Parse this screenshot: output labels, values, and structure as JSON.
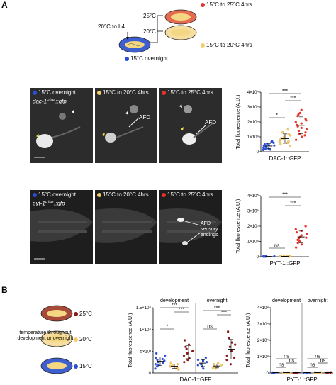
{
  "panel_a": {
    "letter": "A",
    "schematic": {
      "start_label": "20°C to L4",
      "bottom_plate_label": "15°C overnight",
      "branch_top_temp": "25°C",
      "branch_mid_temp": "20°C",
      "legend_top": "15°C to 25°C 4hrs",
      "legend_bottom": "15°C to 20°C 4hrs"
    },
    "row1": {
      "labels": [
        "15°C overnight",
        "15°C to 20°C 4hrs",
        "15°C to 25°C 4hrs"
      ],
      "gene": "dac-1",
      "gene_sup": "crispr",
      "gene_suffix": "::gfp",
      "afd_label_1": "AFD",
      "afd_label_2": "AFD"
    },
    "row2": {
      "labels": [
        "15°C overnight",
        "15°C to 20°C 4hrs",
        "15°C to 25°C 4hrs"
      ],
      "gene": "pyt-1",
      "gene_sup": "crispr",
      "gene_suffix": "::gfp",
      "annotation": [
        "AFD",
        "sensory",
        "endings"
      ]
    }
  },
  "panel_b": {
    "letter": "B",
    "schematic_label": [
      "temperature throughout",
      "development or overnight"
    ],
    "temps": [
      "25°C",
      "20°C",
      "15°C"
    ]
  },
  "colors": {
    "blue": "#2a4fd6",
    "yellow": "#f5cc6b",
    "red": "#e8332a",
    "dark_red": "#8b1a1a",
    "plate_red": "#e56a4f",
    "plate_yellow": "#f5dea0",
    "plate_blue": "#3d5fd0"
  },
  "chart_data": [
    {
      "type": "scatter",
      "ylabel": "Total fluorescence (A.U.)",
      "xlabel": "DAC-1::GFP",
      "y_ticks": [
        "0",
        "1×10⁴",
        "2×10⁴",
        "3×10⁴",
        "4×10⁴"
      ],
      "ylim": [
        0,
        40000
      ],
      "series": [
        {
          "color": "#2a4fd6",
          "values": [
            1200,
            1800,
            2500,
            3000,
            3500,
            4000,
            4200,
            5000,
            5500,
            6000,
            6500,
            7000,
            2000,
            3200,
            4500,
            1500
          ]
        },
        {
          "color": "#f5cc6b",
          "values": [
            4000,
            6000,
            8000,
            10000,
            12000,
            9000,
            7000,
            5000,
            11000,
            13000,
            15000,
            6500,
            8500
          ]
        },
        {
          "color": "#e8332a",
          "values": [
            8000,
            10000,
            12000,
            14000,
            16000,
            18000,
            20000,
            22000,
            24000,
            26000,
            15000,
            17000,
            19000,
            21000,
            13000,
            25000,
            28000,
            11000
          ]
        }
      ],
      "significance": [
        "***",
        "*",
        "***"
      ]
    },
    {
      "type": "scatter",
      "ylabel": "Total fluorescence (A.U.)",
      "xlabel": "PYT-1::GFP",
      "y_ticks": [
        "0",
        "1×10⁵",
        "2×10⁵",
        "3×10⁵",
        "4×10⁵"
      ],
      "ylim": [
        0,
        400000
      ],
      "series": [
        {
          "color": "#2a4fd6",
          "values": [
            1000,
            1500,
            2000,
            2500,
            1200,
            1800,
            2200,
            900
          ]
        },
        {
          "color": "#f5cc6b",
          "values": [
            2000,
            3000,
            2500,
            3500,
            1800,
            2800,
            2200,
            3200
          ]
        },
        {
          "color": "#e8332a",
          "values": [
            60000,
            80000,
            100000,
            120000,
            140000,
            160000,
            180000,
            200000,
            110000,
            130000,
            150000,
            90000,
            170000,
            125000
          ]
        }
      ],
      "significance": [
        "***",
        "***",
        "ns"
      ]
    },
    {
      "type": "scatter",
      "ylabel": "Total fluorescence (A.U.)",
      "xlabel": "DAC-1::GFP",
      "groups": [
        "development",
        "overnight"
      ],
      "y_ticks": [
        "0",
        "5×10³",
        "1×10⁴",
        "1.5×10⁴"
      ],
      "ylim": [
        0,
        15000
      ],
      "series": [
        {
          "color": "#2a4fd6",
          "values": [
            1000,
            1500,
            2000,
            2500,
            3000,
            3500,
            4000,
            4500,
            1800,
            2800,
            3200,
            2200
          ]
        },
        {
          "color": "#f5cc6b",
          "values": [
            800,
            1200,
            1500,
            1800,
            2000,
            2400,
            1000,
            1600
          ]
        },
        {
          "color": "#8b1a1a",
          "values": [
            2500,
            3500,
            4500,
            5500,
            6500,
            7500,
            4000,
            5000,
            6000,
            3000
          ]
        },
        {
          "color": "#2a4fd6",
          "values": [
            1000,
            1500,
            2000,
            2500,
            3000,
            3500,
            1800,
            2800
          ]
        },
        {
          "color": "#f5cc6b",
          "values": [
            1000,
            1400,
            1800,
            2200,
            1200,
            2000
          ]
        },
        {
          "color": "#8b1a1a",
          "values": [
            2000,
            3500,
            5000,
            6500,
            8000,
            9500,
            4000,
            6000,
            3000,
            7000
          ]
        }
      ],
      "significance": [
        "***",
        "***",
        "*",
        "***",
        "***",
        "ns"
      ]
    },
    {
      "type": "scatter",
      "ylabel": "Total fluorescence (A.U.)",
      "xlabel": "PYT-1::GFP",
      "groups": [
        "development",
        "overnight"
      ],
      "y_ticks": [
        "0",
        "1×10⁴",
        "2×10⁴",
        "3×10⁴",
        "4×10⁴"
      ],
      "ylim": [
        0,
        40000
      ],
      "series": [
        {
          "color": "#2a4fd6",
          "values": [
            100,
            200,
            300,
            150,
            250
          ]
        },
        {
          "color": "#f5cc6b",
          "values": [
            100,
            200,
            300,
            150,
            250
          ]
        },
        {
          "color": "#8b1a1a",
          "values": [
            100,
            200,
            300,
            150,
            250
          ]
        },
        {
          "color": "#2a4fd6",
          "values": [
            100,
            200,
            300,
            150,
            250
          ]
        },
        {
          "color": "#f5cc6b",
          "values": [
            100,
            200,
            300,
            150,
            250
          ]
        },
        {
          "color": "#8b1a1a",
          "values": [
            100,
            200,
            300,
            400,
            250
          ]
        }
      ],
      "significance": [
        "ns",
        "ns",
        "ns",
        "ns",
        "ns",
        "ns"
      ]
    }
  ]
}
